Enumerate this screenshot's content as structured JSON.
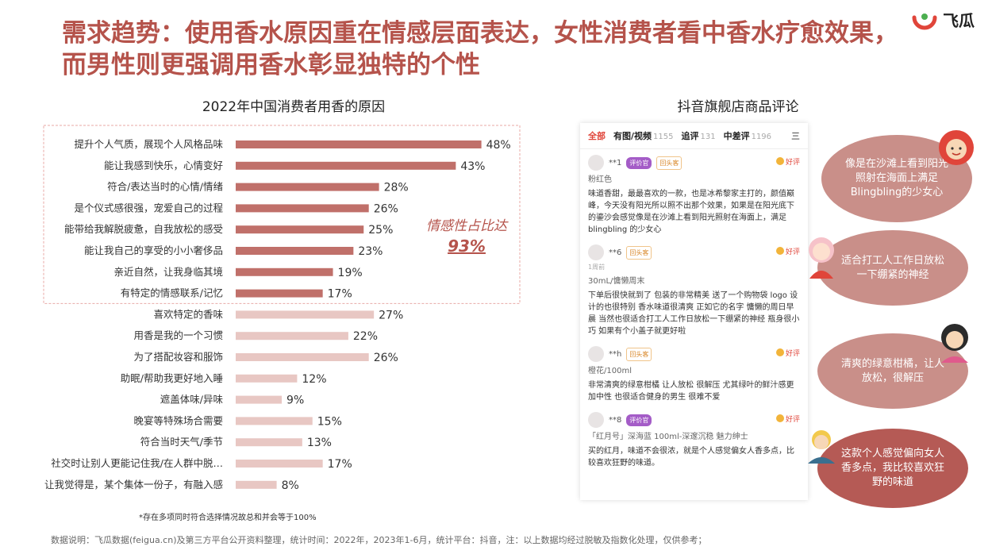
{
  "header": {
    "title": "需求趋势：使用香水原因重在情感层面表达，女性消费者看中香水疗愈效果，而男性则更强调用香水彰显独特的个性",
    "logo_text": "飞瓜"
  },
  "review_section": {
    "title": "抖音旗舰店商品评论",
    "tabs": [
      {
        "label": "全部",
        "count": ""
      },
      {
        "label": "有图/视频",
        "count": "1155"
      },
      {
        "label": "追评",
        "count": "131"
      },
      {
        "label": "中差评",
        "count": "1196"
      }
    ],
    "tab_more": "三",
    "good_label": "好评",
    "reviews": [
      {
        "user": "**1",
        "badge": "评价官",
        "badge2": "回头客",
        "date": "",
        "spec": "粉红色",
        "text": "味道香甜，最最喜欢的一款，也是冰希黎家主打的，颜值巅峰，今天没有阳光所以照不出那个效果，如果是在阳光底下的鎏沙会感觉像是在沙滩上看到阳光照射在海面上，满足 blingbling 的少女心"
      },
      {
        "user": "**6",
        "badge": "",
        "badge2": "回头客",
        "date": "1周前",
        "spec": "30mL/慵懒周末",
        "text": "下单后很快就到了 包装的非常精美 送了一个购物袋 logo 设计的也很特别 香水味道很清爽 正如它的名字 慵懒的周日早晨 当然也很适合打工人工作日放松一下绷紧的神经 瓶身很小巧 如果有个小盖子就更好啦"
      },
      {
        "user": "**h",
        "badge": "",
        "badge2": "回头客",
        "date": "",
        "spec": "橙花/100ml",
        "text": "非常清爽的绿意柑橘 让人放松 很解压 尤其绿叶的鲜汁感更加中性 也很适合健身的男生 很难不爱"
      },
      {
        "user": "**8",
        "badge": "评价官",
        "badge2": "",
        "date": "",
        "spec": "「红月号」深海蓝 100ml-深邃沉稳 魅力绅士",
        "text": "买的红月，味道不会很浓，就是个人感觉偏女人香多点，比较喜欢狂野的味道。"
      }
    ],
    "bubbles": [
      {
        "text": "像是在沙滩上看到阳光照射在海面上满足Blingbling的少女心",
        "color": "#c98f89"
      },
      {
        "text": "适合打工人工作日放松一下绷紧的神经",
        "color": "#c98f89"
      },
      {
        "text": "清爽的绿意柑橘，让人放松，很解压",
        "color": "#c98f89"
      },
      {
        "text": "这款个人感觉偏向女人香多点，我比较喜欢狂野的味道",
        "color": "#b55a55"
      }
    ]
  },
  "chart_data": {
    "type": "bar",
    "orientation": "horizontal",
    "title": "2022年中国消费者用香的原因",
    "categories": [
      "提升个人气质，展现个人风格品味",
      "能让我感到快乐，心情变好",
      "符合/表达当时的心情/情绪",
      "是个仪式感很强，宠爱自己的过程",
      "能带给我解脱疲惫，自我放松的感受",
      "能让我自己的享受的小小奢侈品",
      "亲近自然，让我身临其境",
      "有特定的情感联系/记忆",
      "喜欢特定的香味",
      "用香是我的一个习惯",
      "为了搭配妆容和服饰",
      "助眠/帮助我更好地入睡",
      "遮盖体味/异味",
      "晚宴等特殊场合需要",
      "符合当时天气/季节",
      "社交时让别人更能记住我/在人群中脱…",
      "让我觉得是，某个集体一份子，有融入感"
    ],
    "values": [
      48,
      43,
      28,
      26,
      25,
      23,
      19,
      17,
      27,
      22,
      26,
      12,
      9,
      15,
      13,
      17,
      8
    ],
    "value_suffix": "%",
    "emotional_group_count": 8,
    "annotation": {
      "line1": "情感性占比达",
      "line2": "93%"
    },
    "colors": {
      "emotional": "#c0706a",
      "other": "#e8c7c3",
      "annotation": "#b5534b",
      "box_border": "#e8a9a6"
    },
    "note": "*存在多项同时符合选择情况故总和并会等于100%"
  },
  "footer": {
    "source": "数据说明：飞瓜数据(feigua.cn)及第三方平台公开资料整理，统计时间：2022年，2023年1-6月，统计平台：抖音，注：以上数据均经过脱敏及指数化处理，仅供参考；"
  }
}
